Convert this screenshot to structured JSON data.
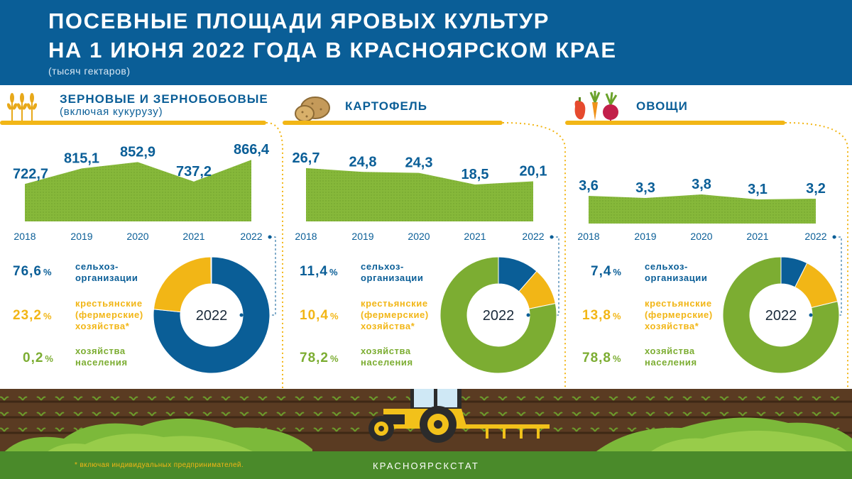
{
  "header": {
    "title_line1": "ПОСЕВНЫЕ ПЛОЩАДИ ЯРОВЫХ КУЛЬТУР",
    "title_line2": "НА 1 ИЮНЯ 2022 ГОДА В КРАСНОЯРСКОМ КРАЕ",
    "units": "(тысяч гектаров)"
  },
  "colors": {
    "blue": "#0a5e97",
    "yellow": "#f2b616",
    "green": "#7cad32"
  },
  "icons": [
    "wheat-icon",
    "potato-icon",
    "vegetables-icon",
    "tractor-icon"
  ],
  "legend_labels": {
    "agri_orgs": "сельхоз-организации",
    "agri_orgs_l1": "сельхоз-",
    "agri_orgs_l2": "организации",
    "farms_l1": "крестьянские",
    "farms_l2": "(фермерские)",
    "farms_l3": "хозяйства*",
    "households_l1": "хозяйства",
    "households_l2": "населения"
  },
  "percent_sign": "%",
  "chart_data": [
    {
      "type": "area",
      "title": "ЗЕРНОВЫЕ И ЗЕРНОБОБОВЫЕ",
      "subtitle": "(включая кукурузу)",
      "x": [
        "2018",
        "2019",
        "2020",
        "2021",
        "2022"
      ],
      "values": [
        722.7,
        815.1,
        852.9,
        737.2,
        866.4
      ],
      "labels": [
        "722,7",
        "815,1",
        "852,9",
        "737,2",
        "866,4"
      ],
      "pie": {
        "type": "pie",
        "center_label": "2022",
        "shares": [
          76.6,
          23.2,
          0.2
        ],
        "share_labels": [
          "76,6",
          "23,2",
          "0,2"
        ]
      }
    },
    {
      "type": "area",
      "title": "КАРТОФЕЛЬ",
      "subtitle": "",
      "x": [
        "2018",
        "2019",
        "2020",
        "2021",
        "2022"
      ],
      "values": [
        26.7,
        24.8,
        24.3,
        18.5,
        20.1
      ],
      "labels": [
        "26,7",
        "24,8",
        "24,3",
        "18,5",
        "20,1"
      ],
      "pie": {
        "type": "pie",
        "center_label": "2022",
        "shares": [
          11.4,
          10.4,
          78.2
        ],
        "share_labels": [
          "11,4",
          "10,4",
          "78,2"
        ]
      }
    },
    {
      "type": "area",
      "title": "ОВОЩИ",
      "subtitle": "",
      "x": [
        "2018",
        "2019",
        "2020",
        "2021",
        "2022"
      ],
      "values": [
        3.6,
        3.3,
        3.8,
        3.1,
        3.2
      ],
      "labels": [
        "3,6",
        "3,3",
        "3,8",
        "3,1",
        "3,2"
      ],
      "pie": {
        "type": "pie",
        "center_label": "2022",
        "shares": [
          7.4,
          13.8,
          78.8
        ],
        "share_labels": [
          "7,4",
          "13,8",
          "78,8"
        ]
      }
    }
  ],
  "footer": {
    "footnote": "* включая индивидуальных предпринимателей.",
    "source": "КРАСНОЯРСКСТАТ"
  }
}
